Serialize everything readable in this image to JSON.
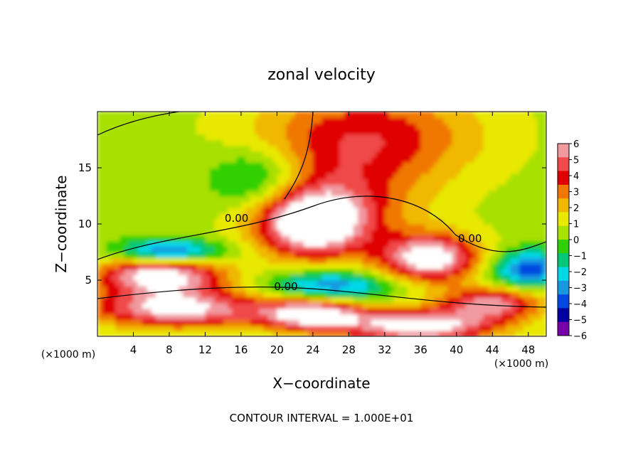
{
  "chart_data": {
    "type": "heatmap",
    "title": "zonal velocity",
    "xlabel": "X−coordinate",
    "ylabel": "Z−coordinate",
    "x_unit_left": "(×1000 m)",
    "x_unit_right": "(×1000 m)",
    "footer": "CONTOUR INTERVAL = 1.000E+01",
    "xlim": [
      0,
      50
    ],
    "ylim": [
      0,
      20
    ],
    "x_ticks": [
      4,
      8,
      12,
      16,
      20,
      24,
      28,
      32,
      36,
      40,
      44,
      48
    ],
    "y_ticks": [
      5,
      10,
      15
    ],
    "colorbar": {
      "range": [
        -6,
        6
      ],
      "labels": [
        "6",
        "5",
        "4",
        "3",
        "2",
        "1",
        "0",
        "−1",
        "−2",
        "−3",
        "−4",
        "−5",
        "−6"
      ],
      "colors": [
        "#f09aa0",
        "#f04a4a",
        "#e00000",
        "#f07800",
        "#f0b800",
        "#e8e800",
        "#a8e000",
        "#30d000",
        "#00c878",
        "#00d8e8",
        "#1898e0",
        "#0048e0",
        "#0000a0",
        "#7800a8"
      ]
    },
    "contour_labels": [
      {
        "text": "0.00",
        "x": 15.5,
        "y": 10.2
      },
      {
        "text": "0.00",
        "x": 21.0,
        "y": 4.1
      },
      {
        "text": "0.00",
        "x": 41.5,
        "y": 8.4
      }
    ],
    "field_features": [
      {
        "kind": "background",
        "value": 0.5
      },
      {
        "x": 30,
        "y": 18,
        "sx": 9,
        "sy": 3,
        "value": 3.5
      },
      {
        "x": 26,
        "y": 12,
        "sx": 7,
        "sy": 3,
        "value": 3.0
      },
      {
        "x": 24,
        "y": 10,
        "sx": 4,
        "sy": 2,
        "value": 6.5
      },
      {
        "x": 37,
        "y": 7,
        "sx": 4,
        "sy": 1.5,
        "value": 6.5
      },
      {
        "x": 7,
        "y": 5.5,
        "sx": 5,
        "sy": 1.2,
        "value": 6.5
      },
      {
        "x": 9,
        "y": 2.5,
        "sx": 7,
        "sy": 1.2,
        "value": 6.0
      },
      {
        "x": 18,
        "y": 14,
        "sx": 4,
        "sy": 2,
        "value": -3.0
      },
      {
        "x": 24,
        "y": 2,
        "sx": 4,
        "sy": 1,
        "value": 6.5
      },
      {
        "x": 36,
        "y": 1.0,
        "sx": 6,
        "sy": 1,
        "value": 6.5
      },
      {
        "x": 48,
        "y": 6,
        "sx": 3,
        "sy": 1.2,
        "value": -4.5
      },
      {
        "x": 8,
        "y": 7.5,
        "sx": 4,
        "sy": 0.8,
        "value": -5.0
      },
      {
        "x": 26,
        "y": 4.5,
        "sx": 5,
        "sy": 1,
        "value": -4.0
      },
      {
        "x": 44,
        "y": 3,
        "sx": 4,
        "sy": 1,
        "value": 5.0
      }
    ]
  }
}
